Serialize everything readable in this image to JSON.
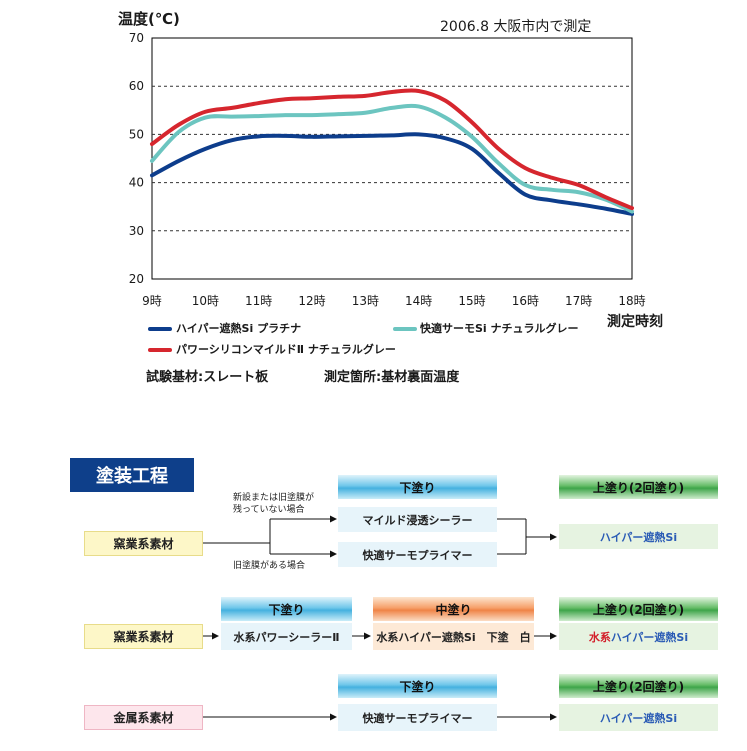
{
  "chart_data": {
    "type": "line",
    "title": "2006.8 大阪市内で測定",
    "ylabel": "温度(℃)",
    "xlabel": "測定時刻",
    "ylim": [
      20,
      70
    ],
    "yticks": [
      20,
      30,
      40,
      50,
      60,
      70
    ],
    "categories": [
      "9時",
      "10時",
      "11時",
      "12時",
      "13時",
      "14時",
      "15時",
      "16時",
      "17時",
      "18時"
    ],
    "x": [
      9,
      9.5,
      10,
      10.5,
      11,
      11.5,
      12,
      12.5,
      13,
      13.5,
      14,
      14.5,
      15,
      15.5,
      16,
      16.5,
      17,
      17.5,
      18
    ],
    "series": [
      {
        "name": "ハイパー遮熱Si プラチナ",
        "color": "#0d3d8c",
        "values": [
          41.5,
          44.5,
          47,
          48.8,
          49.6,
          49.7,
          49.5,
          49.6,
          49.7,
          49.8,
          50,
          49.2,
          47,
          42,
          37.5,
          36.3,
          35.5,
          34.6,
          33.5
        ]
      },
      {
        "name": "快適サーモSi ナチュラルグレー",
        "color": "#6cc5c0",
        "values": [
          44.5,
          50.5,
          53.5,
          53.7,
          53.8,
          54,
          54,
          54.2,
          54.5,
          55.5,
          55.8,
          53.5,
          49.5,
          44,
          39.5,
          38.5,
          38,
          36.5,
          34
        ]
      },
      {
        "name": "パワーシリコンマイルドⅡ ナチュラルグレー",
        "color": "#d6262e",
        "values": [
          48,
          52,
          54.7,
          55.5,
          56.5,
          57.3,
          57.5,
          57.8,
          58,
          58.8,
          59,
          57,
          52.5,
          47,
          43,
          41,
          39.5,
          37,
          34.7
        ]
      }
    ]
  },
  "notes": {
    "substrate": "試験基材:スレート板",
    "location": "測定箇所:基材裏面温度"
  },
  "process": {
    "title": "塗装工程",
    "row1": {
      "base": "窯業系素材",
      "cond_new": [
        "新設または旧塗膜が",
        "残っていない場合"
      ],
      "cond_old": "旧塗膜がある場合",
      "under_header": "下塗り",
      "under_a": "マイルド浸透シーラー",
      "under_b": "快適サーモプライマー",
      "top_header": "上塗り(2回塗り)",
      "top": "ハイパー遮熱Si"
    },
    "row2": {
      "base": "窯業系素材",
      "under_header": "下塗り",
      "under": "水系パワーシーラーⅡ",
      "middle_header": "中塗り",
      "middle": "水系ハイパー遮熱Si　下塗　白",
      "top_header": "上塗り(2回塗り)",
      "top_prefix": "水系",
      "top_rest": "ハイパー遮熱Si"
    },
    "row3": {
      "base": "金属系素材",
      "under_header": "下塗り",
      "under": "快適サーモプライマー",
      "top_header": "上塗り(2回塗り)",
      "top": "ハイパー遮熱Si"
    }
  }
}
